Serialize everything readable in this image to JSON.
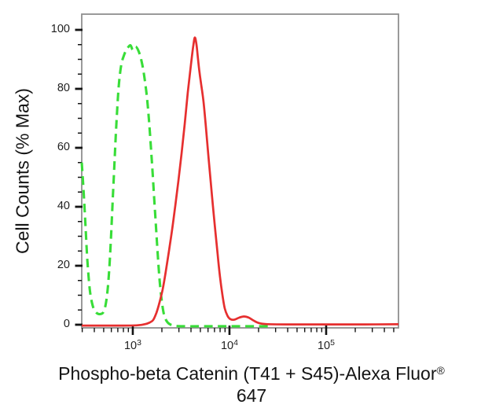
{
  "figure": {
    "y_axis_title": "Cell Counts (% Max)",
    "x_axis_title_main": "Phospho-beta Catenin (T41 + S45)-Alexa Fluor",
    "x_axis_title_reg": "®",
    "x_axis_title_line2": "647"
  },
  "chart_data": {
    "type": "line",
    "subtype": "flow-cytometry-histogram-overlay",
    "title": "",
    "xlabel": "Phospho-beta Catenin (T41 + S45)-Alexa Fluor® 647",
    "ylabel": "Cell Counts (% Max)",
    "grid": false,
    "legend": null,
    "frame_color": "#8f8f8f",
    "tick_color": "#141414",
    "x_axis": {
      "scale": "log10",
      "range_log10": [
        2.472,
        5.748
      ],
      "major_ticks": [
        {
          "base": "10",
          "exp": "3",
          "log10": 3
        },
        {
          "base": "10",
          "exp": "4",
          "log10": 4
        },
        {
          "base": "10",
          "exp": "5",
          "log10": 5
        }
      ],
      "minor_ticks_per_decade": [
        2,
        3,
        4,
        5,
        6,
        7,
        8,
        9
      ]
    },
    "y_axis": {
      "range": [
        -1.07,
        105.33
      ],
      "major_ticks": [
        0,
        20,
        40,
        60,
        80,
        100
      ],
      "minor_tick_step": 5
    },
    "series": [
      {
        "id": "green_dashed",
        "name": "green dashed histogram",
        "color": "#38dd38",
        "line_style": "dashed",
        "peak": {
          "log10_x": 3.0,
          "pct": 94.8
        },
        "points_log10x_pct": [
          [
            2.472,
            55
          ],
          [
            2.49,
            46
          ],
          [
            2.51,
            34
          ],
          [
            2.53,
            22
          ],
          [
            2.555,
            12
          ],
          [
            2.585,
            6.5
          ],
          [
            2.62,
            4.2
          ],
          [
            2.66,
            3.6
          ],
          [
            2.7,
            4.5
          ],
          [
            2.73,
            9
          ],
          [
            2.755,
            18
          ],
          [
            2.775,
            30
          ],
          [
            2.795,
            44
          ],
          [
            2.815,
            58
          ],
          [
            2.835,
            71
          ],
          [
            2.855,
            81
          ],
          [
            2.88,
            88
          ],
          [
            2.91,
            91.5
          ],
          [
            2.94,
            93.5
          ],
          [
            2.975,
            94.8
          ],
          [
            3.0,
            93.2
          ],
          [
            3.03,
            94.3
          ],
          [
            3.06,
            92.8
          ],
          [
            3.09,
            89.5
          ],
          [
            3.12,
            84
          ],
          [
            3.15,
            76
          ],
          [
            3.175,
            66
          ],
          [
            3.2,
            54
          ],
          [
            3.225,
            41
          ],
          [
            3.25,
            28
          ],
          [
            3.275,
            16
          ],
          [
            3.3,
            8
          ],
          [
            3.325,
            3.2
          ],
          [
            3.36,
            0.8
          ],
          [
            3.41,
            -0.2
          ],
          [
            3.5,
            -0.5
          ],
          [
            3.8,
            -0.5
          ],
          [
            4.1,
            -0.5
          ],
          [
            4.4,
            -0.5
          ]
        ]
      },
      {
        "id": "red_solid",
        "name": "red solid histogram",
        "color": "#e62f2f",
        "line_style": "solid",
        "peak": {
          "log10_x": 3.642,
          "pct": 97.4
        },
        "points_log10x_pct": [
          [
            2.472,
            -0.3
          ],
          [
            2.9,
            -0.3
          ],
          [
            3.05,
            -0.2
          ],
          [
            3.13,
            0.2
          ],
          [
            3.171,
            0.7
          ],
          [
            3.211,
            1.6
          ],
          [
            3.244,
            4.0
          ],
          [
            3.276,
            7.5
          ],
          [
            3.309,
            12.0
          ],
          [
            3.341,
            18.0
          ],
          [
            3.374,
            25.0
          ],
          [
            3.407,
            32.3
          ],
          [
            3.439,
            40.3
          ],
          [
            3.472,
            48.8
          ],
          [
            3.504,
            58.0
          ],
          [
            3.537,
            68.0
          ],
          [
            3.569,
            78.7
          ],
          [
            3.602,
            88.3
          ],
          [
            3.626,
            94.7
          ],
          [
            3.642,
            97.4
          ],
          [
            3.659,
            95.0
          ],
          [
            3.675,
            90.0
          ],
          [
            3.691,
            85.3
          ],
          [
            3.707,
            81.6
          ],
          [
            3.732,
            75.5
          ],
          [
            3.756,
            67.0
          ],
          [
            3.78,
            58.0
          ],
          [
            3.805,
            48.8
          ],
          [
            3.829,
            40.3
          ],
          [
            3.854,
            31.7
          ],
          [
            3.878,
            23.7
          ],
          [
            3.902,
            16.3
          ],
          [
            3.927,
            10.1
          ],
          [
            3.951,
            5.6
          ],
          [
            3.98,
            3.0
          ],
          [
            4.01,
            1.9
          ],
          [
            4.05,
            1.7
          ],
          [
            4.1,
            2.4
          ],
          [
            4.15,
            2.8
          ],
          [
            4.2,
            2.4
          ],
          [
            4.25,
            1.4
          ],
          [
            4.3,
            0.6
          ],
          [
            4.38,
            0.2
          ],
          [
            4.6,
            0.1
          ],
          [
            5.0,
            0.1
          ],
          [
            5.4,
            0.1
          ],
          [
            5.748,
            0.15
          ]
        ]
      }
    ]
  }
}
